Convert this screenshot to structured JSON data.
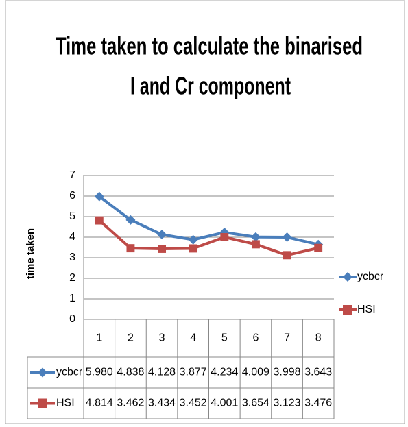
{
  "chart_data": {
    "type": "line",
    "title": [
      "Time taken to calculate the binarised",
      "I and Cr component"
    ],
    "ylabel": "time taken",
    "categories": [
      "1",
      "2",
      "3",
      "4",
      "5",
      "6",
      "7",
      "8"
    ],
    "series": [
      {
        "name": "ycbcr",
        "color": "#4a7ebb",
        "marker": "diamond",
        "values": [
          5.98,
          4.838,
          4.128,
          3.877,
          4.234,
          4.009,
          3.998,
          3.643
        ],
        "value_labels": [
          "5.980",
          "4.838",
          "4.128",
          "3.877",
          "4.234",
          "4.009",
          "3.998",
          "3.643"
        ]
      },
      {
        "name": "HSI",
        "color": "#be4b48",
        "marker": "square",
        "values": [
          4.814,
          3.462,
          3.434,
          3.452,
          4.001,
          3.654,
          3.123,
          3.476
        ],
        "value_labels": [
          "4.814",
          "3.462",
          "3.434",
          "3.452",
          "4.001",
          "3.654",
          "3.123",
          "3.476"
        ]
      }
    ],
    "ylim": [
      0,
      7
    ],
    "yticks": [
      0,
      1,
      2,
      3,
      4,
      5,
      6,
      7
    ],
    "grid": true,
    "legend": "right",
    "data_table": true
  }
}
